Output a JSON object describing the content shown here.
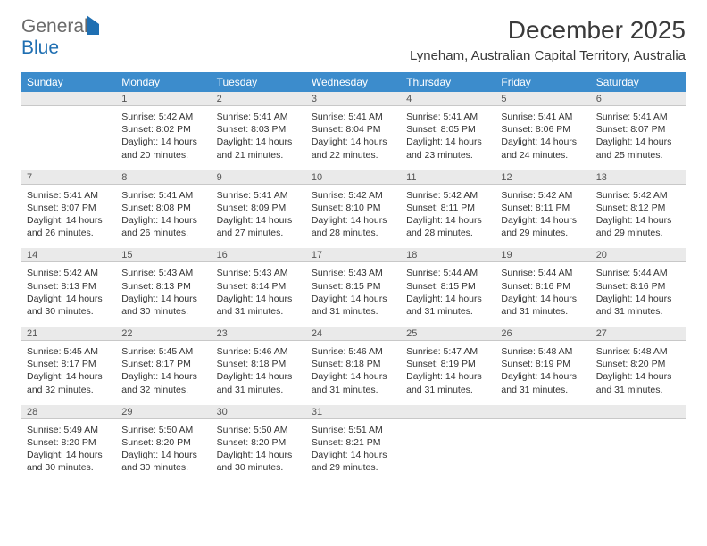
{
  "logo": {
    "word1": "General",
    "word2": "Blue"
  },
  "title": "December 2025",
  "location": "Lyneham, Australian Capital Territory, Australia",
  "columns": [
    "Sunday",
    "Monday",
    "Tuesday",
    "Wednesday",
    "Thursday",
    "Friday",
    "Saturday"
  ],
  "colors": {
    "header_bg": "#3c8ccc",
    "header_fg": "#ffffff",
    "daynum_bg": "#eaeaea",
    "daynum_border": "#c8c8c8",
    "text": "#333333",
    "logo_gray": "#6a6a6a",
    "logo_blue": "#1f6fb2"
  },
  "weeks": [
    [
      null,
      {
        "n": "1",
        "sunrise": "5:42 AM",
        "sunset": "8:02 PM",
        "daylight": "14 hours and 20 minutes."
      },
      {
        "n": "2",
        "sunrise": "5:41 AM",
        "sunset": "8:03 PM",
        "daylight": "14 hours and 21 minutes."
      },
      {
        "n": "3",
        "sunrise": "5:41 AM",
        "sunset": "8:04 PM",
        "daylight": "14 hours and 22 minutes."
      },
      {
        "n": "4",
        "sunrise": "5:41 AM",
        "sunset": "8:05 PM",
        "daylight": "14 hours and 23 minutes."
      },
      {
        "n": "5",
        "sunrise": "5:41 AM",
        "sunset": "8:06 PM",
        "daylight": "14 hours and 24 minutes."
      },
      {
        "n": "6",
        "sunrise": "5:41 AM",
        "sunset": "8:07 PM",
        "daylight": "14 hours and 25 minutes."
      }
    ],
    [
      {
        "n": "7",
        "sunrise": "5:41 AM",
        "sunset": "8:07 PM",
        "daylight": "14 hours and 26 minutes."
      },
      {
        "n": "8",
        "sunrise": "5:41 AM",
        "sunset": "8:08 PM",
        "daylight": "14 hours and 26 minutes."
      },
      {
        "n": "9",
        "sunrise": "5:41 AM",
        "sunset": "8:09 PM",
        "daylight": "14 hours and 27 minutes."
      },
      {
        "n": "10",
        "sunrise": "5:42 AM",
        "sunset": "8:10 PM",
        "daylight": "14 hours and 28 minutes."
      },
      {
        "n": "11",
        "sunrise": "5:42 AM",
        "sunset": "8:11 PM",
        "daylight": "14 hours and 28 minutes."
      },
      {
        "n": "12",
        "sunrise": "5:42 AM",
        "sunset": "8:11 PM",
        "daylight": "14 hours and 29 minutes."
      },
      {
        "n": "13",
        "sunrise": "5:42 AM",
        "sunset": "8:12 PM",
        "daylight": "14 hours and 29 minutes."
      }
    ],
    [
      {
        "n": "14",
        "sunrise": "5:42 AM",
        "sunset": "8:13 PM",
        "daylight": "14 hours and 30 minutes."
      },
      {
        "n": "15",
        "sunrise": "5:43 AM",
        "sunset": "8:13 PM",
        "daylight": "14 hours and 30 minutes."
      },
      {
        "n": "16",
        "sunrise": "5:43 AM",
        "sunset": "8:14 PM",
        "daylight": "14 hours and 31 minutes."
      },
      {
        "n": "17",
        "sunrise": "5:43 AM",
        "sunset": "8:15 PM",
        "daylight": "14 hours and 31 minutes."
      },
      {
        "n": "18",
        "sunrise": "5:44 AM",
        "sunset": "8:15 PM",
        "daylight": "14 hours and 31 minutes."
      },
      {
        "n": "19",
        "sunrise": "5:44 AM",
        "sunset": "8:16 PM",
        "daylight": "14 hours and 31 minutes."
      },
      {
        "n": "20",
        "sunrise": "5:44 AM",
        "sunset": "8:16 PM",
        "daylight": "14 hours and 31 minutes."
      }
    ],
    [
      {
        "n": "21",
        "sunrise": "5:45 AM",
        "sunset": "8:17 PM",
        "daylight": "14 hours and 32 minutes."
      },
      {
        "n": "22",
        "sunrise": "5:45 AM",
        "sunset": "8:17 PM",
        "daylight": "14 hours and 32 minutes."
      },
      {
        "n": "23",
        "sunrise": "5:46 AM",
        "sunset": "8:18 PM",
        "daylight": "14 hours and 31 minutes."
      },
      {
        "n": "24",
        "sunrise": "5:46 AM",
        "sunset": "8:18 PM",
        "daylight": "14 hours and 31 minutes."
      },
      {
        "n": "25",
        "sunrise": "5:47 AM",
        "sunset": "8:19 PM",
        "daylight": "14 hours and 31 minutes."
      },
      {
        "n": "26",
        "sunrise": "5:48 AM",
        "sunset": "8:19 PM",
        "daylight": "14 hours and 31 minutes."
      },
      {
        "n": "27",
        "sunrise": "5:48 AM",
        "sunset": "8:20 PM",
        "daylight": "14 hours and 31 minutes."
      }
    ],
    [
      {
        "n": "28",
        "sunrise": "5:49 AM",
        "sunset": "8:20 PM",
        "daylight": "14 hours and 30 minutes."
      },
      {
        "n": "29",
        "sunrise": "5:50 AM",
        "sunset": "8:20 PM",
        "daylight": "14 hours and 30 minutes."
      },
      {
        "n": "30",
        "sunrise": "5:50 AM",
        "sunset": "8:20 PM",
        "daylight": "14 hours and 30 minutes."
      },
      {
        "n": "31",
        "sunrise": "5:51 AM",
        "sunset": "8:21 PM",
        "daylight": "14 hours and 29 minutes."
      },
      null,
      null,
      null
    ]
  ],
  "labels": {
    "sunrise": "Sunrise:",
    "sunset": "Sunset:",
    "daylight": "Daylight:"
  }
}
